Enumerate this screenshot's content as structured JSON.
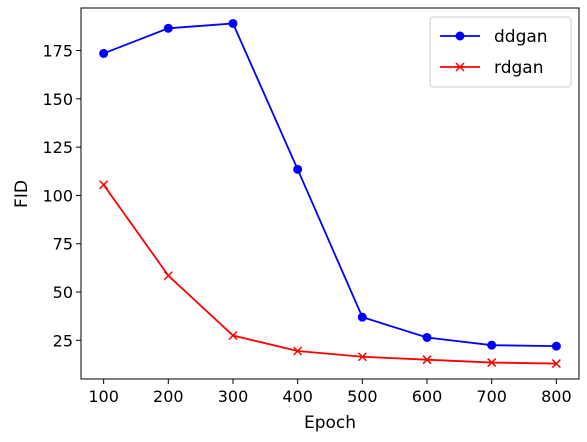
{
  "chart_data": {
    "type": "line",
    "xlabel": "Epoch",
    "ylabel": "FID",
    "x": [
      100,
      200,
      300,
      400,
      500,
      600,
      700,
      800
    ],
    "xticks": [
      100,
      200,
      300,
      400,
      500,
      600,
      700,
      800
    ],
    "yticks": [
      25,
      50,
      75,
      100,
      125,
      150,
      175
    ],
    "xlim": [
      65,
      835
    ],
    "ylim": [
      5,
      197
    ],
    "grid": false,
    "legend_position": "top-right",
    "series": [
      {
        "name": "ddgan",
        "color": "#0000ff",
        "marker": "circle",
        "values": [
          173.5,
          186.5,
          189,
          113.5,
          37,
          26.5,
          22.5,
          22
        ]
      },
      {
        "name": "rdgan",
        "color": "#ff0000",
        "marker": "x",
        "values": [
          105.5,
          58.5,
          27.5,
          19.5,
          16.5,
          15,
          13.5,
          13
        ]
      }
    ]
  }
}
